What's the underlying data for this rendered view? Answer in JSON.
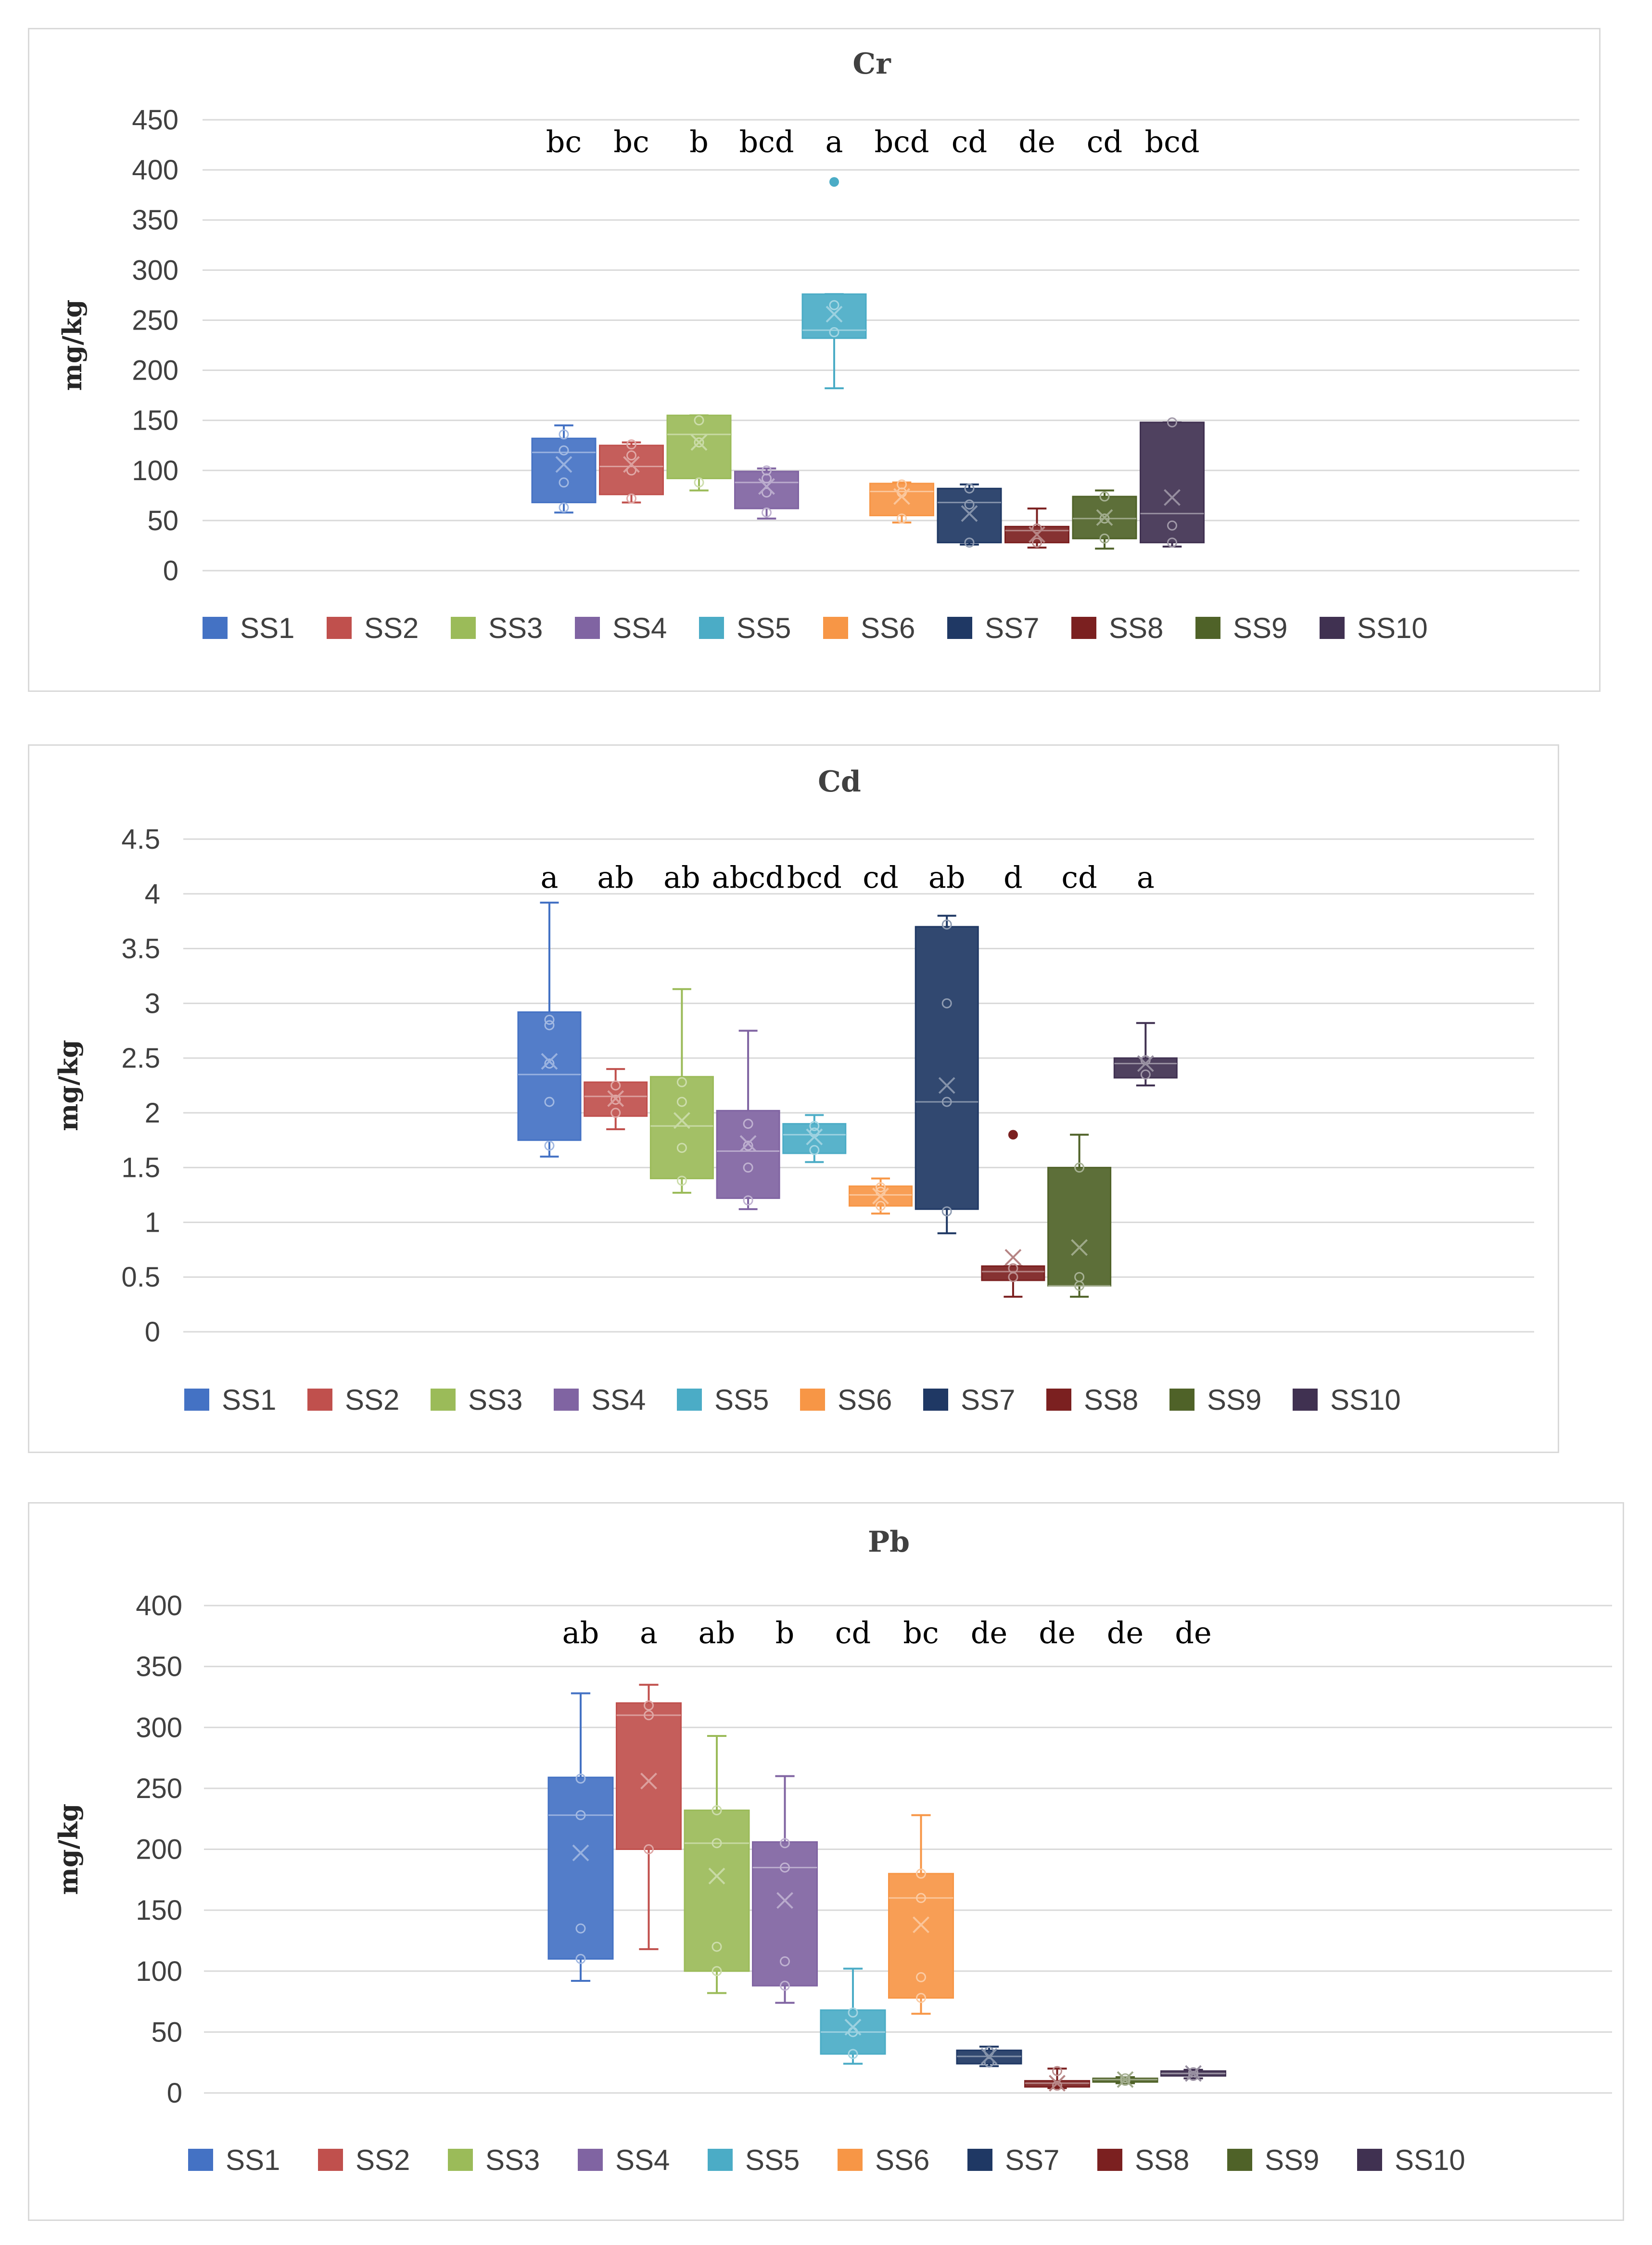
{
  "chart_data": [
    {
      "type": "box",
      "title": "Cr",
      "ylabel": "mg/kg",
      "ylim": [
        0,
        450
      ],
      "yticks": [
        "0",
        "50",
        "100",
        "150",
        "200",
        "250",
        "300",
        "350",
        "400",
        "450"
      ],
      "grid": true,
      "legend_position": "bottom",
      "series": [
        {
          "name": "SS1",
          "color": "#4472C4",
          "min": 58,
          "q1": 68,
          "median": 118,
          "q3": 132,
          "max": 145,
          "mean": 106,
          "points": [
            63,
            88,
            120,
            136
          ],
          "outliers": [],
          "letter": "bc"
        },
        {
          "name": "SS2",
          "color": "#C0504D",
          "min": 68,
          "q1": 76,
          "median": 104,
          "q3": 125,
          "max": 128,
          "mean": 106,
          "points": [
            72,
            100,
            115,
            126
          ],
          "outliers": [],
          "letter": "bc"
        },
        {
          "name": "SS3",
          "color": "#9BBB59",
          "min": 80,
          "q1": 92,
          "median": 136,
          "q3": 155,
          "max": 155,
          "mean": 128,
          "points": [
            88,
            128,
            150
          ],
          "outliers": [],
          "letter": "b"
        },
        {
          "name": "SS4",
          "color": "#8064A2",
          "min": 52,
          "q1": 62,
          "median": 88,
          "q3": 99,
          "max": 102,
          "mean": 84,
          "points": [
            58,
            78,
            92,
            100
          ],
          "outliers": [],
          "letter": "bcd"
        },
        {
          "name": "SS5",
          "color": "#4BACC6",
          "min": 182,
          "q1": 232,
          "median": 240,
          "q3": 276,
          "max": 276,
          "mean": 256,
          "points": [
            238,
            265
          ],
          "outliers": [
            388
          ],
          "letter": "a"
        },
        {
          "name": "SS6",
          "color": "#F79646",
          "min": 48,
          "q1": 55,
          "median": 79,
          "q3": 87,
          "max": 88,
          "mean": 74,
          "points": [
            52,
            78,
            86
          ],
          "outliers": [],
          "letter": "bcd"
        },
        {
          "name": "SS7",
          "color": "#1F3864",
          "min": 26,
          "q1": 28,
          "median": 68,
          "q3": 82,
          "max": 86,
          "mean": 57,
          "points": [
            28,
            66,
            82
          ],
          "outliers": [],
          "letter": "cd"
        },
        {
          "name": "SS8",
          "color": "#7B2020",
          "min": 23,
          "q1": 28,
          "median": 40,
          "q3": 44,
          "max": 62,
          "mean": 36,
          "points": [
            28,
            42
          ],
          "outliers": [],
          "letter": "de"
        },
        {
          "name": "SS9",
          "color": "#4F6228",
          "min": 22,
          "q1": 32,
          "median": 52,
          "q3": 74,
          "max": 80,
          "mean": 53,
          "points": [
            32,
            52,
            74
          ],
          "outliers": [],
          "letter": "cd"
        },
        {
          "name": "SS10",
          "color": "#403151",
          "min": 24,
          "q1": 28,
          "median": 57,
          "q3": 148,
          "max": 148,
          "mean": 73,
          "points": [
            28,
            45,
            148
          ],
          "outliers": [],
          "letter": "bcd"
        }
      ]
    },
    {
      "type": "box",
      "title": "Cd",
      "ylabel": "mg/kg",
      "ylim": [
        0,
        4.5
      ],
      "yticks": [
        "0",
        "0.5",
        "1",
        "1.5",
        "2",
        "2.5",
        "3",
        "3.5",
        "4",
        "4.5"
      ],
      "grid": true,
      "legend_position": "bottom",
      "series": [
        {
          "name": "SS1",
          "color": "#4472C4",
          "min": 1.6,
          "q1": 1.75,
          "median": 2.35,
          "q3": 2.92,
          "max": 3.92,
          "mean": 2.47,
          "points": [
            1.7,
            2.1,
            2.45,
            2.8,
            2.85
          ],
          "outliers": [],
          "letter": "a"
        },
        {
          "name": "SS2",
          "color": "#C0504D",
          "min": 1.85,
          "q1": 1.97,
          "median": 2.15,
          "q3": 2.28,
          "max": 2.4,
          "mean": 2.13,
          "points": [
            2.0,
            2.12,
            2.25
          ],
          "outliers": [],
          "letter": "ab"
        },
        {
          "name": "SS3",
          "color": "#9BBB59",
          "min": 1.27,
          "q1": 1.4,
          "median": 1.88,
          "q3": 2.33,
          "max": 3.13,
          "mean": 1.93,
          "points": [
            1.38,
            1.68,
            2.1,
            2.28
          ],
          "outliers": [],
          "letter": "ab"
        },
        {
          "name": "SS4",
          "color": "#8064A2",
          "min": 1.12,
          "q1": 1.22,
          "median": 1.65,
          "q3": 2.02,
          "max": 2.75,
          "mean": 1.72,
          "points": [
            1.2,
            1.5,
            1.7,
            1.9
          ],
          "outliers": [],
          "letter": "abcd"
        },
        {
          "name": "SS5",
          "color": "#4BACC6",
          "min": 1.55,
          "q1": 1.63,
          "median": 1.8,
          "q3": 1.9,
          "max": 1.98,
          "mean": 1.78,
          "points": [
            1.66,
            1.82,
            1.88
          ],
          "outliers": [],
          "letter": "bcd"
        },
        {
          "name": "SS6",
          "color": "#F79646",
          "min": 1.08,
          "q1": 1.15,
          "median": 1.25,
          "q3": 1.33,
          "max": 1.4,
          "mean": 1.24,
          "points": [
            1.15,
            1.28,
            1.32
          ],
          "outliers": [],
          "letter": "cd"
        },
        {
          "name": "SS7",
          "color": "#1F3864",
          "min": 0.9,
          "q1": 1.12,
          "median": 2.1,
          "q3": 3.7,
          "max": 3.8,
          "mean": 2.25,
          "points": [
            1.1,
            2.1,
            3.0,
            3.72
          ],
          "outliers": [],
          "letter": "ab"
        },
        {
          "name": "SS8",
          "color": "#7B2020",
          "min": 0.32,
          "q1": 0.47,
          "median": 0.55,
          "q3": 0.6,
          "max": 0.6,
          "mean": 0.68,
          "points": [
            0.5,
            0.58
          ],
          "outliers": [
            1.8
          ],
          "letter": "d"
        },
        {
          "name": "SS9",
          "color": "#4F6228",
          "min": 0.32,
          "q1": 0.42,
          "median": 0.42,
          "q3": 1.5,
          "max": 1.8,
          "mean": 0.77,
          "points": [
            0.42,
            0.5,
            1.5
          ],
          "outliers": [],
          "letter": "cd"
        },
        {
          "name": "SS10",
          "color": "#403151",
          "min": 2.25,
          "q1": 2.32,
          "median": 2.45,
          "q3": 2.5,
          "max": 2.82,
          "mean": 2.45,
          "points": [
            2.35,
            2.48
          ],
          "outliers": [],
          "letter": "a"
        }
      ]
    },
    {
      "type": "box",
      "title": "Pb",
      "ylabel": "mg/kg",
      "ylim": [
        0,
        400
      ],
      "yticks": [
        "0",
        "50",
        "100",
        "150",
        "200",
        "250",
        "300",
        "350",
        "400"
      ],
      "grid": true,
      "legend_position": "bottom",
      "series": [
        {
          "name": "SS1",
          "color": "#4472C4",
          "min": 92,
          "q1": 110,
          "median": 228,
          "q3": 259,
          "max": 328,
          "mean": 197,
          "points": [
            110,
            135,
            228,
            258
          ],
          "outliers": [],
          "letter": "ab"
        },
        {
          "name": "SS2",
          "color": "#C0504D",
          "min": 118,
          "q1": 200,
          "median": 310,
          "q3": 320,
          "max": 335,
          "mean": 256,
          "points": [
            200,
            310,
            318
          ],
          "outliers": [],
          "letter": "a"
        },
        {
          "name": "SS3",
          "color": "#9BBB59",
          "min": 82,
          "q1": 100,
          "median": 205,
          "q3": 232,
          "max": 293,
          "mean": 178,
          "points": [
            100,
            120,
            205,
            232
          ],
          "outliers": [],
          "letter": "ab"
        },
        {
          "name": "SS4",
          "color": "#8064A2",
          "min": 74,
          "q1": 88,
          "median": 185,
          "q3": 206,
          "max": 260,
          "mean": 158,
          "points": [
            88,
            108,
            185,
            205
          ],
          "outliers": [],
          "letter": "b"
        },
        {
          "name": "SS5",
          "color": "#4BACC6",
          "min": 24,
          "q1": 32,
          "median": 50,
          "q3": 68,
          "max": 102,
          "mean": 54,
          "points": [
            32,
            50,
            66
          ],
          "outliers": [],
          "letter": "cd"
        },
        {
          "name": "SS6",
          "color": "#F79646",
          "min": 65,
          "q1": 78,
          "median": 160,
          "q3": 180,
          "max": 228,
          "mean": 138,
          "points": [
            78,
            95,
            160,
            180
          ],
          "outliers": [],
          "letter": "bc"
        },
        {
          "name": "SS7",
          "color": "#1F3864",
          "min": 22,
          "q1": 24,
          "median": 30,
          "q3": 35,
          "max": 38,
          "mean": 30,
          "points": [
            25,
            34
          ],
          "outliers": [],
          "letter": "de"
        },
        {
          "name": "SS8",
          "color": "#7B2020",
          "min": 4,
          "q1": 5,
          "median": 8,
          "q3": 10,
          "max": 20,
          "mean": 8,
          "points": [
            6,
            18
          ],
          "outliers": [],
          "letter": "de"
        },
        {
          "name": "SS9",
          "color": "#4F6228",
          "min": 8,
          "q1": 9,
          "median": 11,
          "q3": 12,
          "max": 13,
          "mean": 11,
          "points": [
            10,
            12
          ],
          "outliers": [],
          "letter": "de"
        },
        {
          "name": "SS10",
          "color": "#403151",
          "min": 12,
          "q1": 14,
          "median": 16,
          "q3": 18,
          "max": 19,
          "mean": 16,
          "points": [
            14,
            17
          ],
          "outliers": [],
          "letter": "de"
        }
      ]
    }
  ]
}
